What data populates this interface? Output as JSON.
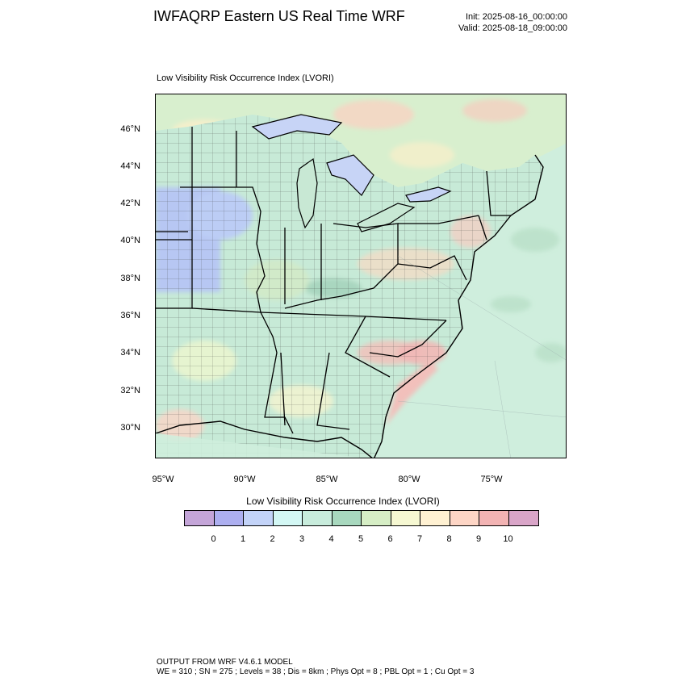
{
  "header": {
    "title": "IWFAQRP Eastern US Real Time WRF",
    "init": "Init: 2025-08-16_00:00:00",
    "valid": "Valid: 2025-08-18_09:00:00"
  },
  "plot": {
    "field_label": "Low Visibility Risk Occurrence Index   (LVORI)"
  },
  "axes": {
    "lat_labels": [
      "46°N",
      "44°N",
      "42°N",
      "40°N",
      "38°N",
      "36°N",
      "34°N",
      "32°N",
      "30°N"
    ],
    "lon_labels": [
      "95°W",
      "90°W",
      "85°W",
      "80°W",
      "75°W"
    ]
  },
  "colorbar": {
    "title": "Low Visibility Risk Occurrence Index  (LVORI)",
    "tick_labels": [
      "0",
      "1",
      "2",
      "3",
      "4",
      "5",
      "6",
      "7",
      "8",
      "9",
      "10"
    ],
    "colors": [
      "#c4a5d8",
      "#adaff0",
      "#c3d3f8",
      "#d3f7f4",
      "#c8ecdc",
      "#a8d8be",
      "#d6eec5",
      "#f6f8d2",
      "#fff1d2",
      "#fdd5c5",
      "#f2b3b3",
      "#d9a5c8"
    ]
  },
  "footer": {
    "line1": "OUTPUT FROM WRF V4.6.1 MODEL",
    "line2": "WE = 310 ; SN = 275 ; Levels = 38 ; Dis = 8km ; Phys Opt = 8 ; PBL Opt = 1 ; Cu Opt = 3"
  }
}
